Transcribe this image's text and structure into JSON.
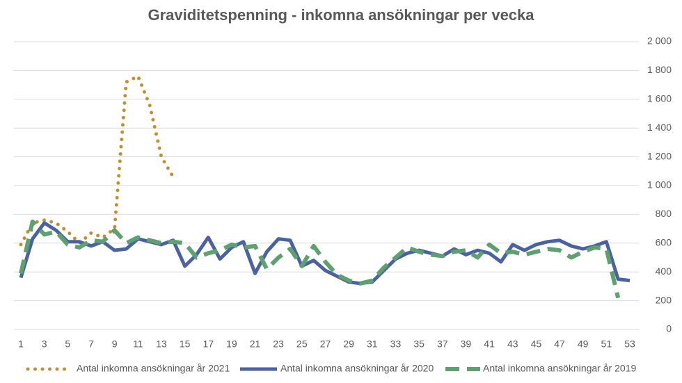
{
  "chart_data": {
    "type": "line",
    "title": "Graviditetspenning - inkomna ansökningar per vecka",
    "categories": [
      "1",
      null,
      "3",
      null,
      "5",
      null,
      "7",
      null,
      "9",
      null,
      "11",
      null,
      "13",
      null,
      "15",
      null,
      "17",
      null,
      "19",
      null,
      "21",
      null,
      "23",
      null,
      "25",
      null,
      "27",
      null,
      "29",
      null,
      "31",
      null,
      "33",
      null,
      "35",
      null,
      "37",
      null,
      "39",
      null,
      "41",
      null,
      "43",
      null,
      "45",
      null,
      "47",
      null,
      "49",
      null,
      "51",
      null,
      "53"
    ],
    "ylim": [
      0,
      2000
    ],
    "yticks": [
      0,
      200,
      400,
      600,
      800,
      {
        "value": 1000,
        "label": "1 000"
      },
      {
        "value": 1200,
        "label": "1 200"
      },
      {
        "value": 1400,
        "label": "1 400"
      },
      {
        "value": 1600,
        "label": "1 600"
      },
      {
        "value": 1800,
        "label": "1 800"
      },
      {
        "value": 2000,
        "label": "2 000"
      }
    ],
    "grid": true,
    "y_axis_side": "right",
    "legend": "bottom",
    "series": [
      {
        "name": "Antal inkomna ansökningar år 2021",
        "color": "#c09030",
        "style": "dotted",
        "values": [
          590,
          740,
          760,
          740,
          680,
          600,
          670,
          640,
          700,
          1720,
          1760,
          1560,
          1200,
          1060,
          null,
          null,
          null,
          null,
          null,
          null,
          null,
          null,
          null,
          null,
          null,
          null,
          null,
          null,
          null,
          null,
          null,
          null,
          null,
          null,
          null,
          null,
          null,
          null,
          null,
          null,
          null,
          null,
          null,
          null,
          null,
          null,
          null,
          null,
          null,
          null,
          null,
          null,
          null
        ]
      },
      {
        "name": "Antal inkomna ansökningar år 2020",
        "color": "#4a62a0",
        "style": "solid",
        "values": [
          360,
          630,
          740,
          690,
          610,
          610,
          580,
          610,
          550,
          560,
          630,
          610,
          590,
          620,
          440,
          520,
          640,
          490,
          570,
          610,
          390,
          540,
          630,
          620,
          440,
          480,
          410,
          370,
          330,
          320,
          330,
          410,
          490,
          530,
          550,
          530,
          510,
          560,
          520,
          550,
          530,
          470,
          590,
          550,
          590,
          610,
          620,
          580,
          560,
          580,
          610,
          350,
          340
        ]
      },
      {
        "name": "Antal inkomna ansökningar år 2019",
        "color": "#5fa070",
        "style": "dashed",
        "values": [
          390,
          750,
          660,
          680,
          590,
          570,
          620,
          610,
          690,
          600,
          640,
          620,
          600,
          610,
          600,
          500,
          530,
          550,
          590,
          570,
          580,
          420,
          500,
          560,
          440,
          580,
          470,
          380,
          340,
          320,
          340,
          430,
          500,
          570,
          540,
          520,
          510,
          540,
          550,
          500,
          590,
          530,
          540,
          520,
          540,
          560,
          550,
          500,
          540,
          570,
          560,
          220,
          null
        ]
      }
    ]
  }
}
